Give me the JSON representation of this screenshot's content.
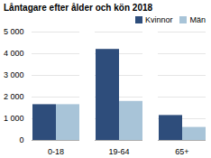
{
  "chart_data": {
    "type": "bar",
    "title": "Låntagare efter ålder och kön 2018",
    "categories": [
      "0-18",
      "19-64",
      "65+"
    ],
    "series": [
      {
        "name": "Kvinnor",
        "color": "#2E4D7B",
        "values": [
          1650,
          4200,
          1150
        ]
      },
      {
        "name": "Män",
        "color": "#A8C4D8",
        "values": [
          1650,
          1800,
          600
        ]
      }
    ],
    "ylim": [
      0,
      5000
    ],
    "yticks": [
      0,
      {
        "value": 1000,
        "label": "1 000"
      },
      {
        "value": 2000,
        "label": "2 000"
      },
      {
        "value": 3000,
        "label": "3 000"
      },
      {
        "value": 4000,
        "label": "4 000"
      },
      {
        "value": 5000,
        "label": "5 000"
      }
    ],
    "grid": true,
    "legend": "upper right"
  }
}
